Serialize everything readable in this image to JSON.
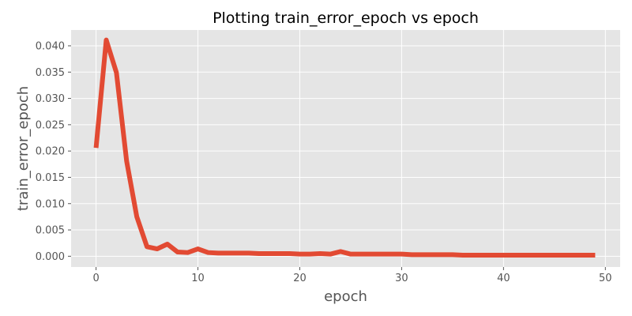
{
  "chart_data": {
    "type": "line",
    "title": "Plotting train_error_epoch vs epoch",
    "xlabel": "epoch",
    "ylabel": "train_error_epoch",
    "xlim": [
      -2.45,
      51.45
    ],
    "ylim": [
      -0.00205,
      0.043
    ],
    "xticks": [
      0,
      10,
      20,
      30,
      40,
      50
    ],
    "xtick_labels": [
      "0",
      "10",
      "20",
      "30",
      "40",
      "50"
    ],
    "yticks": [
      0.0,
      0.005,
      0.01,
      0.015,
      0.02,
      0.025,
      0.03,
      0.035,
      0.04
    ],
    "ytick_labels": [
      "0.000",
      "0.005",
      "0.010",
      "0.015",
      "0.020",
      "0.025",
      "0.030",
      "0.035",
      "0.040"
    ],
    "grid": true,
    "series": [
      {
        "color": "#E24A33",
        "x": [
          0,
          1,
          2,
          3,
          4,
          5,
          6,
          7,
          8,
          9,
          10,
          11,
          12,
          13,
          14,
          15,
          16,
          17,
          18,
          19,
          20,
          21,
          22,
          23,
          24,
          25,
          26,
          27,
          28,
          29,
          30,
          31,
          32,
          33,
          34,
          35,
          36,
          37,
          38,
          39,
          40,
          41,
          42,
          43,
          44,
          45,
          46,
          47,
          48,
          49
        ],
        "values": [
          0.0206,
          0.0411,
          0.0349,
          0.0181,
          0.0075,
          0.0018,
          0.0014,
          0.0023,
          0.0008,
          0.0007,
          0.0014,
          0.0007,
          0.0006,
          0.0006,
          0.0006,
          0.0006,
          0.0005,
          0.0005,
          0.0005,
          0.0005,
          0.0004,
          0.0004,
          0.0005,
          0.0004,
          0.0009,
          0.0004,
          0.0004,
          0.0004,
          0.0004,
          0.0004,
          0.0004,
          0.0003,
          0.0003,
          0.0003,
          0.0003,
          0.0003,
          0.0002,
          0.0002,
          0.0002,
          0.0002,
          0.0002,
          0.0002,
          0.0002,
          0.0002,
          0.0002,
          0.0002,
          0.0002,
          0.0002,
          0.0002,
          0.0002
        ]
      }
    ]
  },
  "colors": {
    "figure_background": "#FFFFFF",
    "plot_background": "#E5E5E5",
    "grid": "#FFFFFF",
    "text": "#555555",
    "title": "#000000"
  }
}
